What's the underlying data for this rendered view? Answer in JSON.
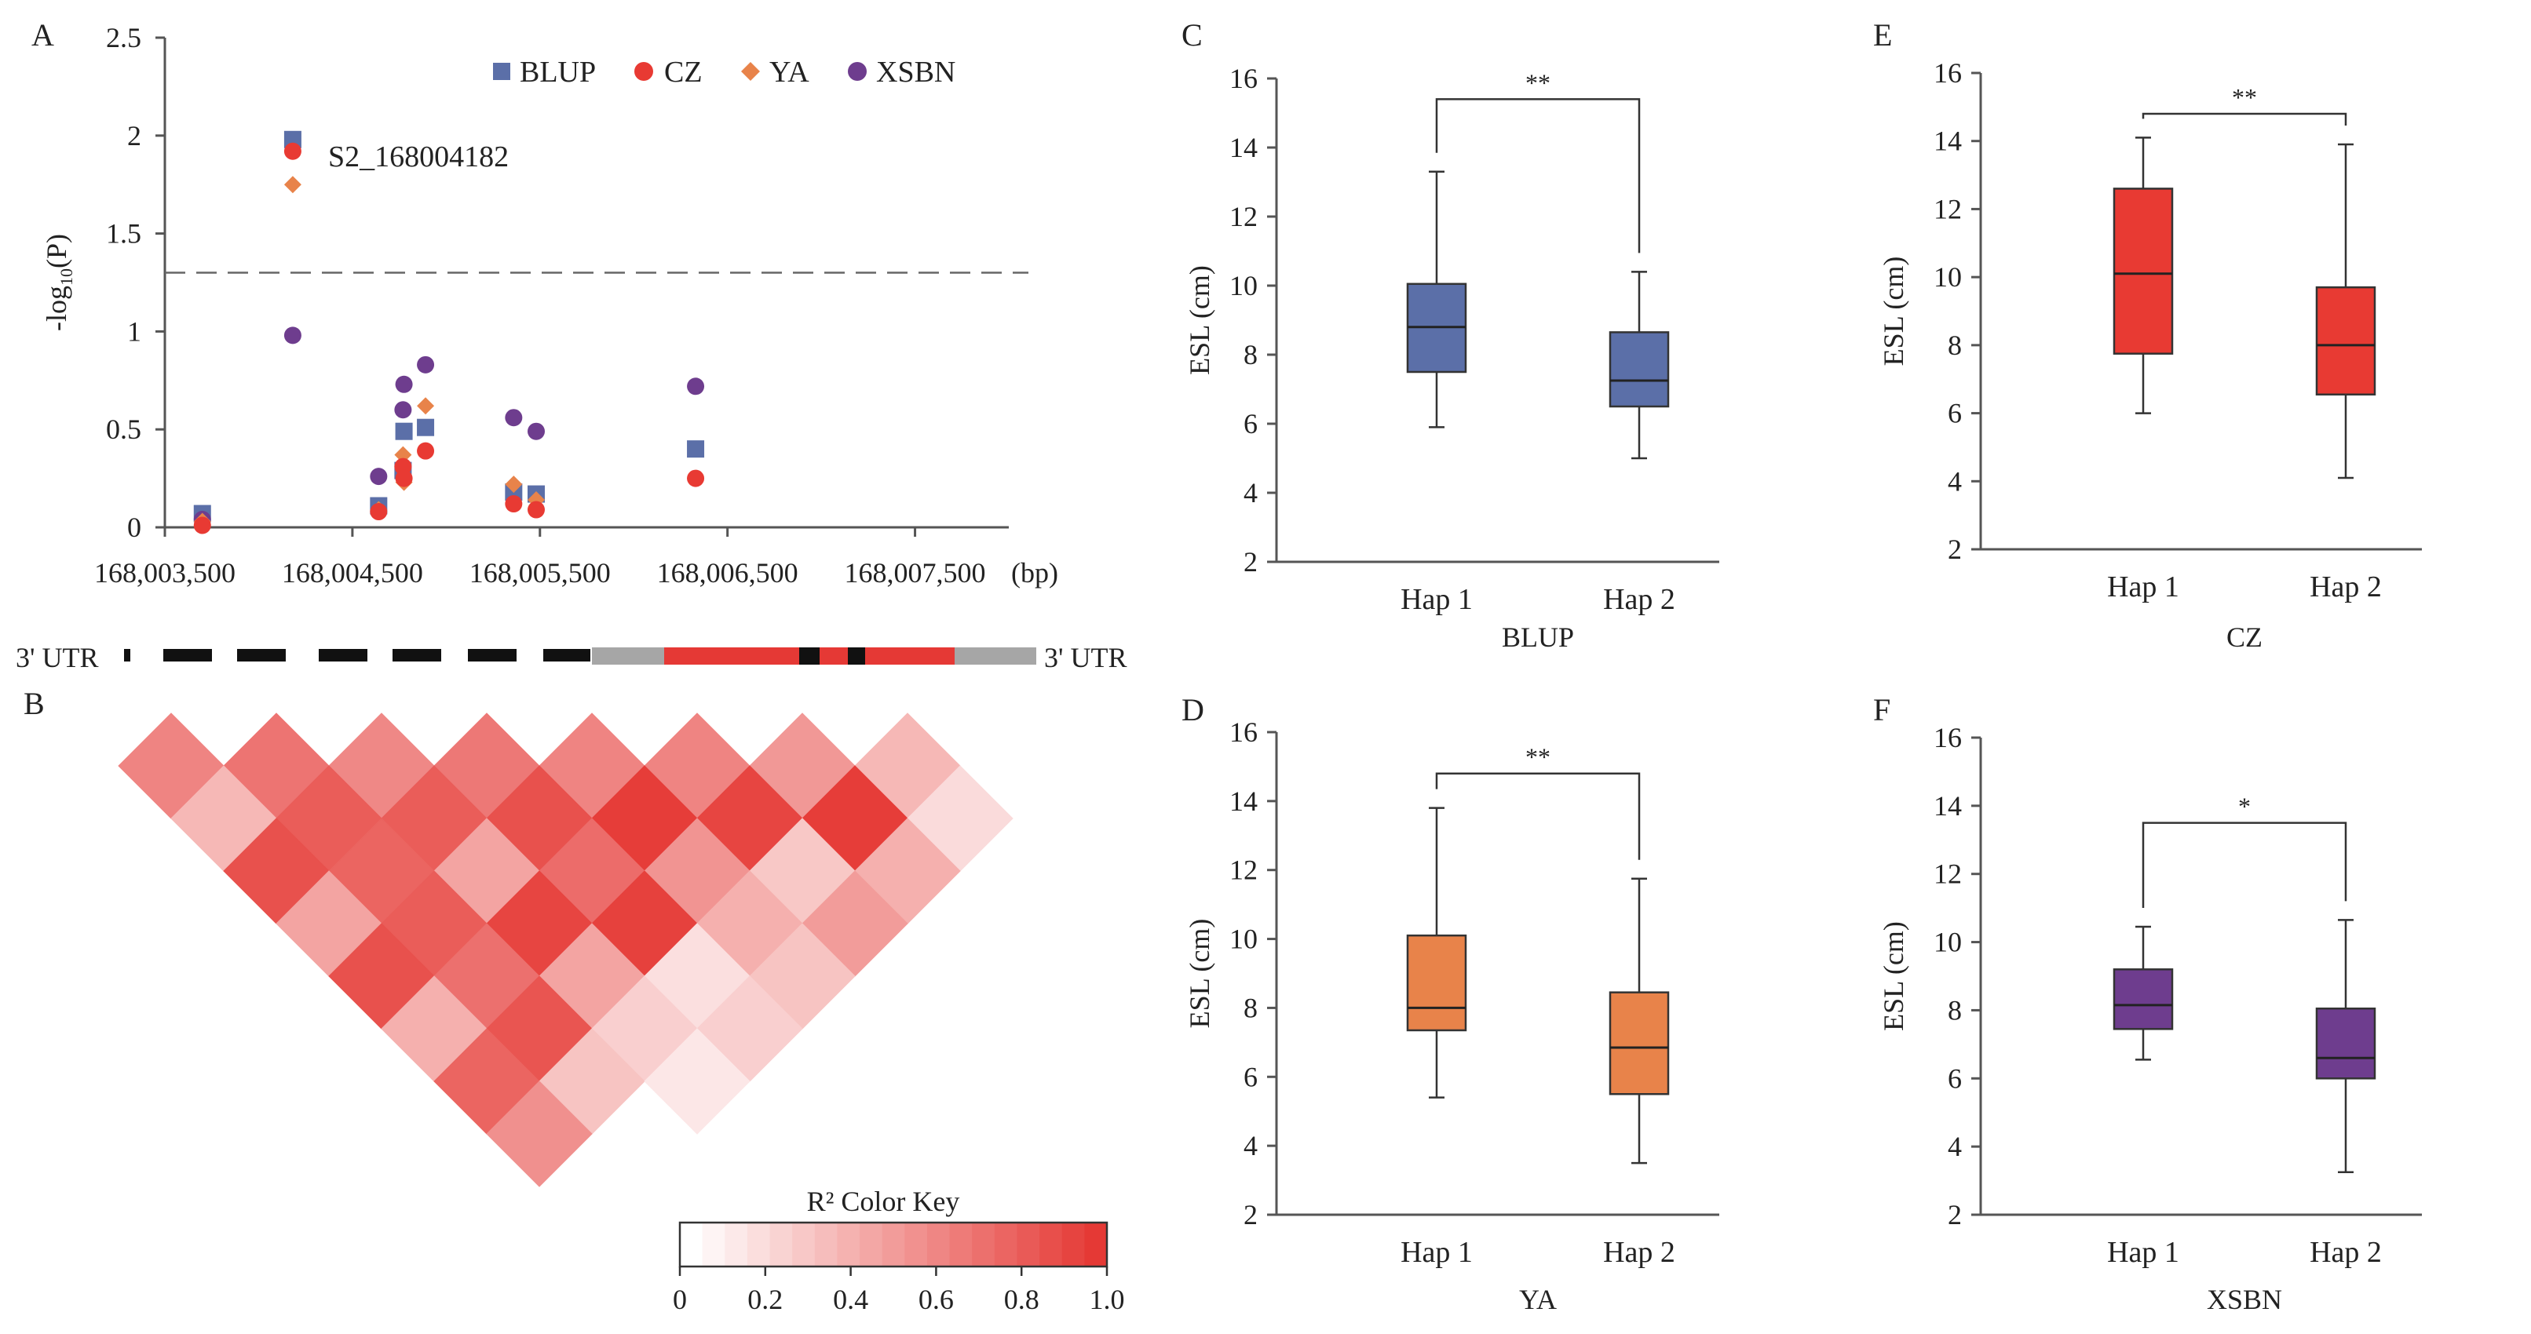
{
  "panels": {
    "A": "A",
    "B": "B",
    "C": "C",
    "D": "D",
    "E": "E",
    "F": "F"
  },
  "colors": {
    "BLUP": "#5b6fa8",
    "CZ": "#e83a33",
    "YA": "#e8834a",
    "XSBN": "#6e3d8e",
    "gene_exon": "#e53935",
    "gene_utr": "#a6a6a6",
    "gene_intron": "#111111"
  },
  "chart_data": [
    {
      "id": "A",
      "type": "scatter",
      "ylabel": "-log10(P)",
      "ylabel_main": "-log",
      "ylabel_sub": "10",
      "ylabel_end": "(P)",
      "xunit": "(bp)",
      "xlim": [
        168003500,
        168008000
      ],
      "ylim": [
        0,
        2.5
      ],
      "yticks": [
        "0",
        "0.5",
        "1",
        "1.5",
        "2",
        "2.5"
      ],
      "xticks": [
        "168,003,500",
        "168,004,500",
        "168,005,500",
        "168,006,500",
        "168,007,500"
      ],
      "xtick_values": [
        168003500,
        168004500,
        168005500,
        168006500,
        168007500
      ],
      "threshold": 1.3,
      "annotation": "S2_168004182",
      "legend": [
        "BLUP",
        "CZ",
        "YA",
        "XSBN"
      ],
      "series": [
        {
          "name": "BLUP",
          "marker": "square",
          "x": [
            168003700,
            168004182,
            168004640,
            168004770,
            168004775,
            168004890,
            168005360,
            168005480,
            168006330
          ],
          "y": [
            0.07,
            1.98,
            0.11,
            0.29,
            0.49,
            0.51,
            0.18,
            0.17,
            0.4
          ]
        },
        {
          "name": "CZ",
          "marker": "circle",
          "x": [
            168003700,
            168004182,
            168004640,
            168004770,
            168004775,
            168004890,
            168005360,
            168005480,
            168006330
          ],
          "y": [
            0.01,
            1.92,
            0.08,
            0.31,
            0.25,
            0.39,
            0.12,
            0.09,
            0.25
          ]
        },
        {
          "name": "YA",
          "marker": "diamond",
          "x": [
            168003700,
            168004182,
            168004640,
            168004770,
            168004775,
            168004890,
            168005360,
            168005480,
            168006330
          ],
          "y": [
            0.03,
            1.75,
            0.09,
            0.37,
            0.23,
            0.62,
            0.22,
            0.14,
            0.25
          ]
        },
        {
          "name": "XSBN",
          "marker": "circle",
          "x": [
            168003700,
            168004182,
            168004640,
            168004770,
            168004775,
            168004890,
            168005360,
            168005480,
            168006330
          ],
          "y": [
            0.04,
            0.98,
            0.26,
            0.6,
            0.73,
            0.83,
            0.56,
            0.49,
            0.72
          ]
        }
      ]
    },
    {
      "id": "B",
      "type": "heatmap",
      "gene_left_label": "3' UTR",
      "gene_right_label": "3' UTR",
      "colorkey_title": "R² Color Key",
      "colorkey_ticks": [
        "0",
        "0.2",
        "0.4",
        "0.6",
        "0.8",
        "1.0"
      ],
      "r2_rows": [
        [
          0.62,
          0.7,
          0.6,
          0.68,
          0.62,
          0.62,
          0.52,
          0.36
        ],
        [
          0.36,
          0.82,
          0.82,
          0.88,
          0.98,
          0.94,
          0.98,
          0.18
        ],
        [
          0.88,
          0.78,
          0.46,
          0.74,
          0.54,
          0.28,
          0.4
        ],
        [
          0.46,
          0.82,
          0.94,
          0.96,
          0.4,
          0.5
        ],
        [
          0.88,
          0.72,
          0.46,
          0.16,
          0.3
        ],
        [
          0.4,
          0.86,
          0.24,
          0.24
        ],
        [
          0.78,
          0.3,
          0.12
        ],
        [
          0.56
        ]
      ]
    },
    {
      "id": "C",
      "type": "box",
      "group": "BLUP",
      "ylabel": "ESL (cm)",
      "ylim": [
        2,
        16
      ],
      "yticks": [
        "2",
        "4",
        "6",
        "8",
        "10",
        "12",
        "14",
        "16"
      ],
      "categories": [
        "Hap 1",
        "Hap 2"
      ],
      "boxes": [
        {
          "min": 5.9,
          "q1": 7.5,
          "median": 8.8,
          "q3": 10.05,
          "max": 13.3
        },
        {
          "min": 5.0,
          "q1": 6.5,
          "median": 7.25,
          "q3": 8.65,
          "max": 10.4
        }
      ],
      "significance": "**"
    },
    {
      "id": "E",
      "type": "box",
      "group": "CZ",
      "ylabel": "ESL (cm)",
      "ylim": [
        2,
        16
      ],
      "yticks": [
        "2",
        "4",
        "6",
        "8",
        "10",
        "12",
        "14",
        "16"
      ],
      "categories": [
        "Hap 1",
        "Hap 2"
      ],
      "boxes": [
        {
          "min": 6.0,
          "q1": 7.75,
          "median": 10.1,
          "q3": 12.6,
          "max": 14.1
        },
        {
          "min": 4.1,
          "q1": 6.55,
          "median": 8.0,
          "q3": 9.7,
          "max": 13.9
        }
      ],
      "significance": "**"
    },
    {
      "id": "D",
      "type": "box",
      "group": "YA",
      "ylabel": "ESL (cm)",
      "ylim": [
        2,
        16
      ],
      "yticks": [
        "2",
        "4",
        "6",
        "8",
        "10",
        "12",
        "14",
        "16"
      ],
      "categories": [
        "Hap 1",
        "Hap 2"
      ],
      "boxes": [
        {
          "min": 5.4,
          "q1": 7.35,
          "median": 8.0,
          "q3": 10.1,
          "max": 13.8
        },
        {
          "min": 3.5,
          "q1": 5.5,
          "median": 6.85,
          "q3": 8.45,
          "max": 11.75
        }
      ],
      "significance": "**"
    },
    {
      "id": "F",
      "type": "box",
      "group": "XSBN",
      "ylabel": "ESL (cm)",
      "ylim": [
        2,
        16
      ],
      "yticks": [
        "2",
        "4",
        "6",
        "8",
        "10",
        "12",
        "14",
        "16"
      ],
      "categories": [
        "Hap 1",
        "Hap 2"
      ],
      "boxes": [
        {
          "min": 6.55,
          "q1": 7.45,
          "median": 8.15,
          "q3": 9.2,
          "max": 10.45
        },
        {
          "min": 3.25,
          "q1": 6.0,
          "median": 6.6,
          "q3": 8.05,
          "max": 10.65
        }
      ],
      "significance": "*"
    }
  ]
}
